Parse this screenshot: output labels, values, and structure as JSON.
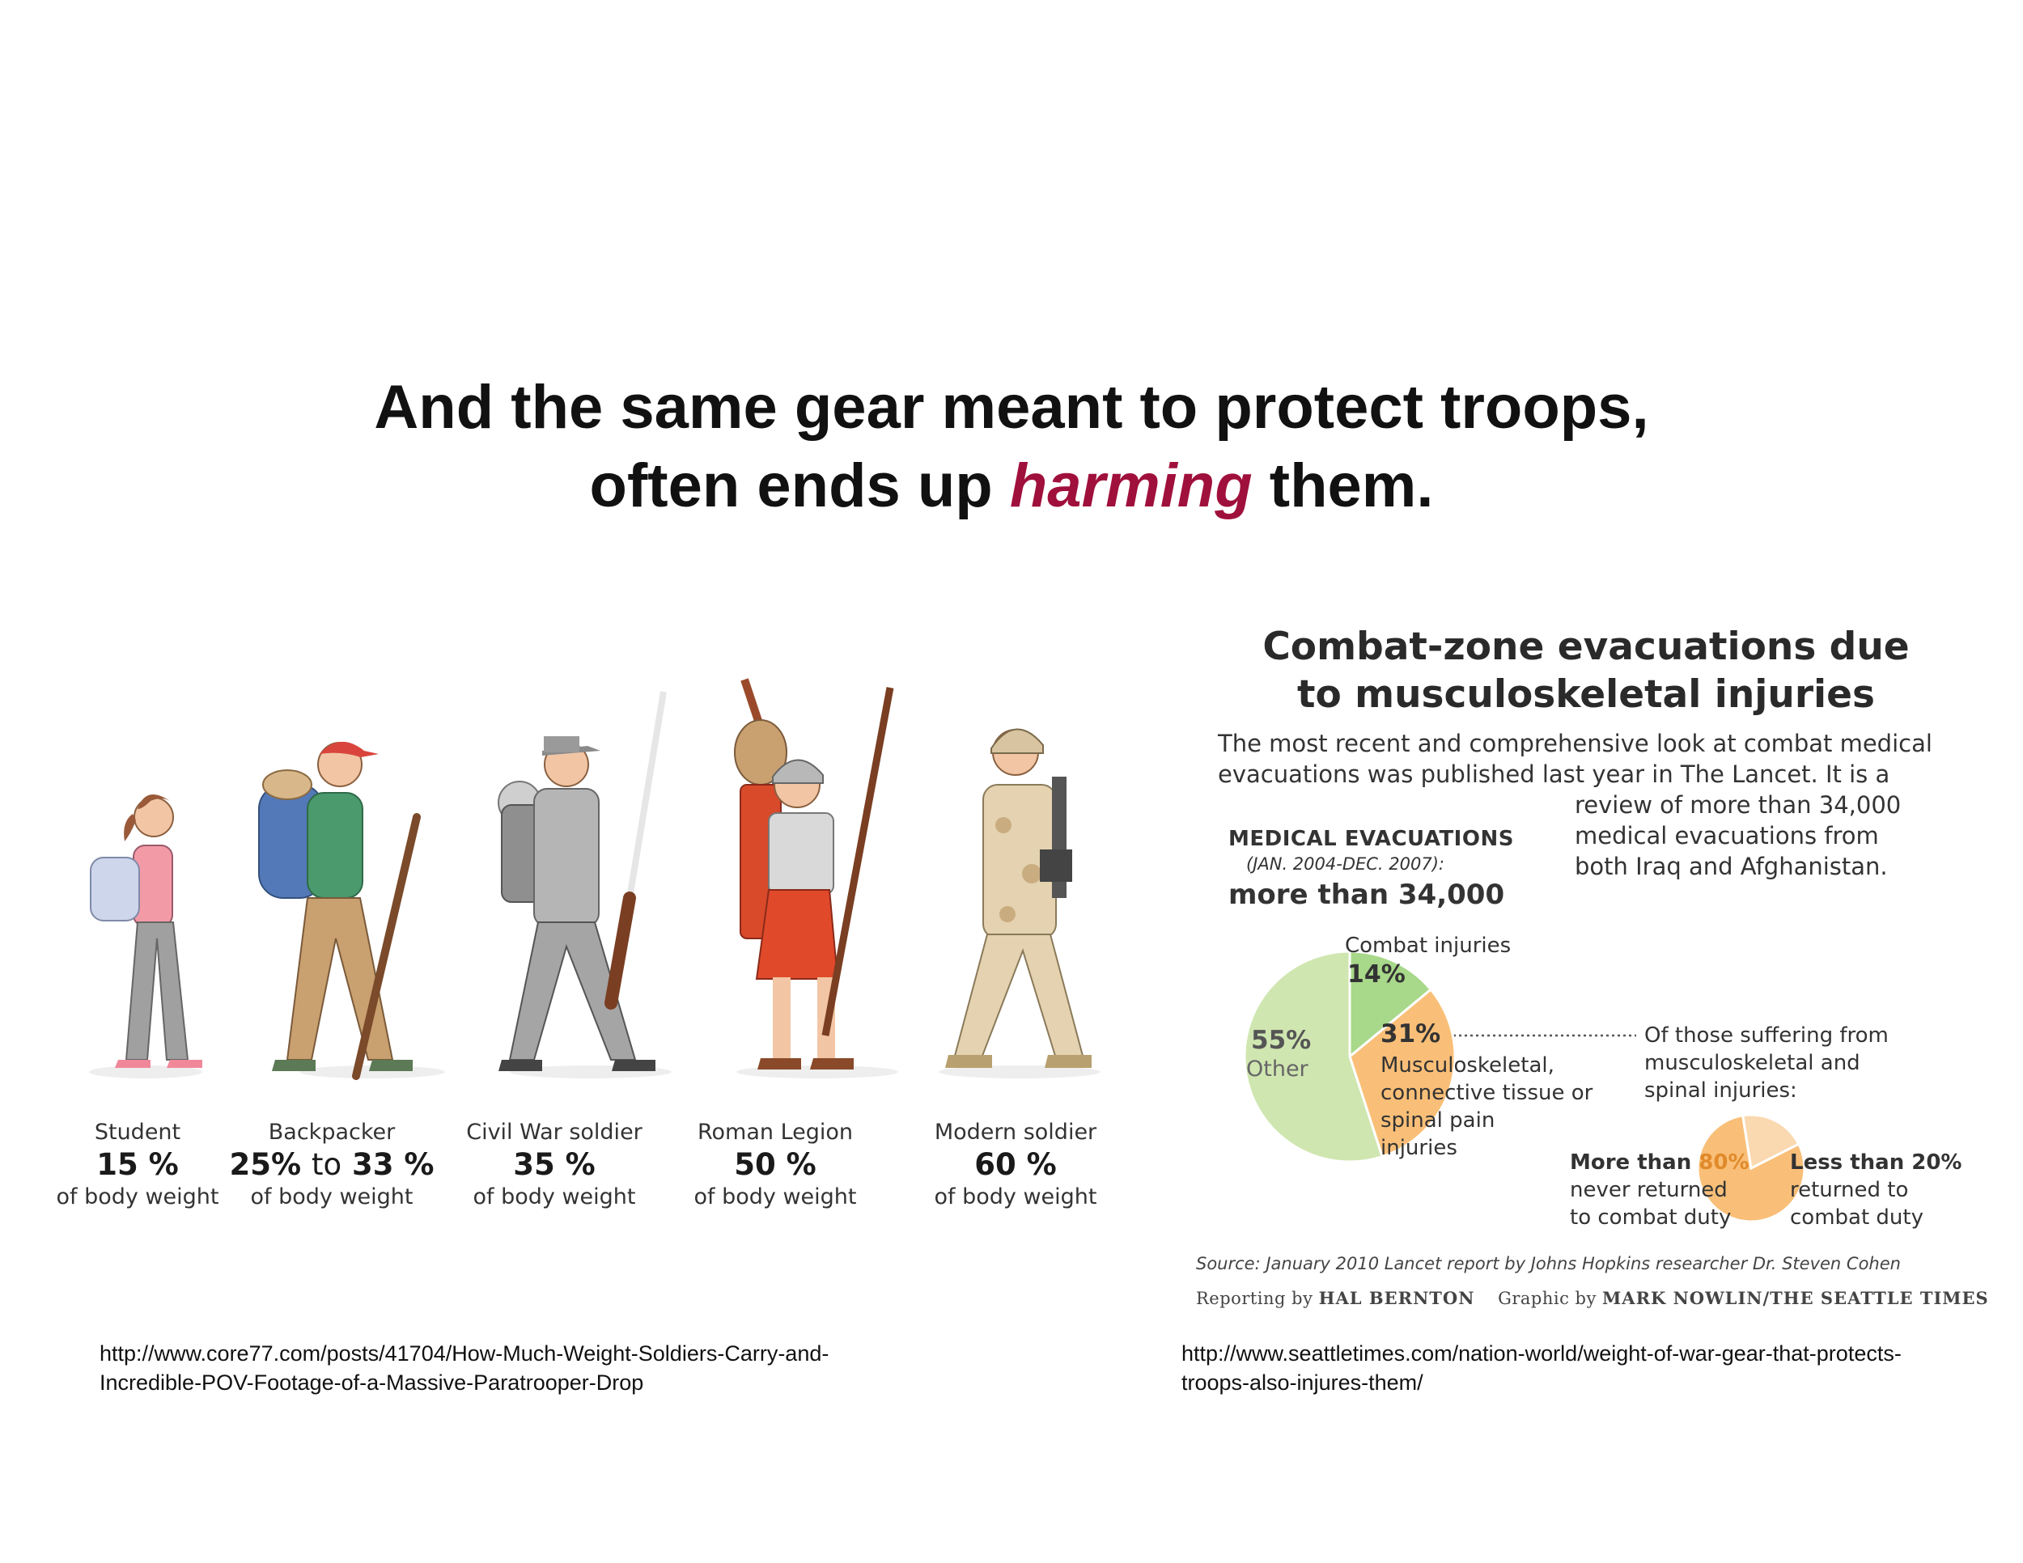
{
  "headline": {
    "line1": "And the same gear meant to protect troops,",
    "line2_before": "often ends up ",
    "line2_emphasis": "harming",
    "line2_after": " them."
  },
  "colors": {
    "emphasis": "#a0103c",
    "pie_other": "#cfe6b0",
    "pie_combat": "#a8d88a",
    "pie_msk": "#f9bf78",
    "pie_returned": "#fad9b0"
  },
  "load_figures": [
    {
      "name": "Student",
      "percent": "15 %",
      "unit": "of body weight"
    },
    {
      "name": "Backpacker",
      "percent_low": "25%",
      "percent_to": "to",
      "percent_high": "33 %",
      "unit": "of body weight"
    },
    {
      "name": "Civil War soldier",
      "percent": "35 %",
      "unit": "of body weight"
    },
    {
      "name": "Roman Legion",
      "percent": "50 %",
      "unit": "of body weight"
    },
    {
      "name": "Modern soldier",
      "percent": "60 %",
      "unit": "of body weight"
    }
  ],
  "evac": {
    "title_line1": "Combat-zone evacuations due",
    "title_line2": "to musculoskeletal injuries",
    "intro_line1": "The most recent and comprehensive look at combat medical",
    "intro_line2": "evacuations was published last year in The Lancet. It is a",
    "intro_line3": "review of more than 34,000",
    "intro_line4": "medical evacuations from",
    "intro_line5": "both Iraq and Afghanistan.",
    "medevac_label": "MEDICAL EVACUATIONS",
    "medevac_dates": "(JAN. 2004-DEC. 2007):",
    "medevac_total": "more than 34,000",
    "combat_label": "Combat injuries",
    "combat_pct": "14%",
    "other_pct": "55%",
    "other_label": "Other",
    "msk_pct": "31%",
    "msk_line1": "Musculoskeletal,",
    "msk_line2": "connective tissue or",
    "msk_line3": "spinal pain",
    "msk_line4": "injuries",
    "sub_line1": "Of those suffering from",
    "sub_line2": "musculoskeletal and",
    "sub_line3": "spinal injuries:",
    "never_prefix": "More than ",
    "never_pct": "80%",
    "never_line2": "never returned",
    "never_line3": "to combat duty",
    "returned_head": "Less than 20%",
    "returned_line2": "returned to",
    "returned_line3": "combat duty",
    "source": "Source: January 2010 Lancet report by Johns Hopkins researcher Dr. Steven Cohen",
    "credit_reporting": "Reporting by",
    "credit_reporter": "HAL BERNTON",
    "credit_graphic": "Graphic by",
    "credit_artist": "MARK NOWLIN/THE SEATTLE TIMES"
  },
  "chart_data": [
    {
      "type": "pie",
      "categories": [
        "Combat injuries",
        "Musculoskeletal, connective tissue or spinal pain injuries",
        "Other"
      ],
      "values": [
        14,
        31,
        55
      ]
    },
    {
      "type": "pie",
      "categories": [
        "never returned to combat duty",
        "returned to combat duty"
      ],
      "values": [
        80,
        20
      ]
    }
  ],
  "urls": {
    "left_line1": "http://www.core77.com/posts/41704/How-Much-Weight-Soldiers-Carry-and-",
    "left_line2": "Incredible-POV-Footage-of-a-Massive-Paratrooper-Drop",
    "right_line1": "http://www.seattletimes.com/nation-world/weight-of-war-gear-that-protects-",
    "right_line2": "troops-also-injures-them/"
  }
}
